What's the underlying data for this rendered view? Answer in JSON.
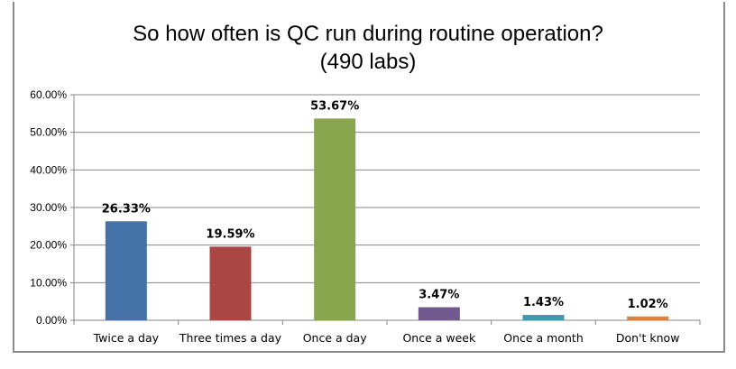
{
  "chart_data": {
    "type": "bar",
    "title": "So how often is QC run during routine operation?",
    "subtitle": "(490 labs)",
    "categories": [
      "Twice a day",
      "Three times a day",
      "Once a day",
      "Once a week",
      "Once a month",
      "Don't know"
    ],
    "values": [
      26.33,
      19.59,
      53.67,
      3.47,
      1.43,
      1.02
    ],
    "data_labels": [
      "26.33%",
      "19.59%",
      "53.67%",
      "3.47%",
      "1.43%",
      "1.02%"
    ],
    "colors": [
      "#4572a7",
      "#aa4643",
      "#89a54e",
      "#71588f",
      "#4198af",
      "#db843d"
    ],
    "yticks": [
      "0.00%",
      "10.00%",
      "20.00%",
      "30.00%",
      "40.00%",
      "50.00%",
      "60.00%"
    ],
    "ylim": [
      0,
      60
    ],
    "xlabel": "",
    "ylabel": "",
    "grid": true,
    "legend": "none"
  }
}
